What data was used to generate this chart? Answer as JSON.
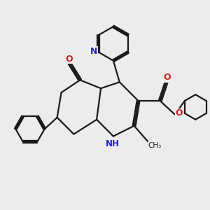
{
  "background_color": "#ececec",
  "bond_color": "#1a1a1a",
  "bond_width": 1.6,
  "n_color": "#2222cc",
  "o_color": "#cc2222",
  "figsize": [
    3.0,
    3.0
  ],
  "dpi": 100,
  "xlim": [
    0,
    10
  ],
  "ylim": [
    0,
    10
  ]
}
